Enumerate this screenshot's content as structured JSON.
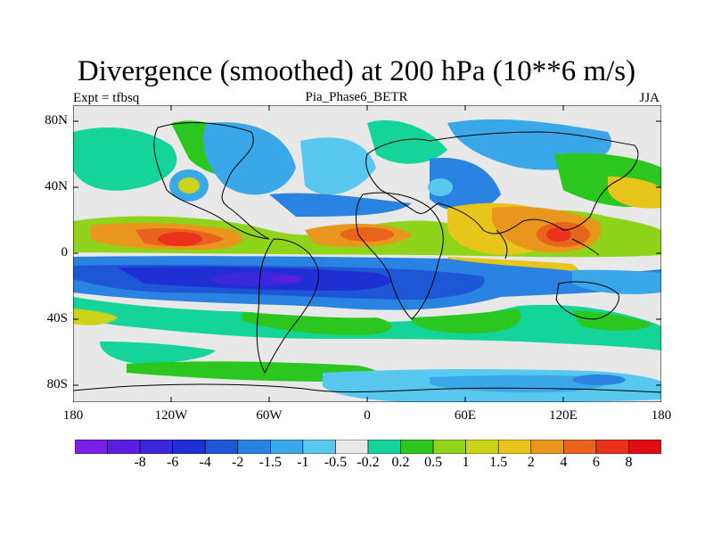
{
  "title": "Divergence (smoothed) at 200 hPa (10**6 m/s)",
  "left_label": "Expt = tfbsq",
  "center_label": "Pia_Phase6_BETR",
  "right_label": "JJA",
  "map": {
    "lat_ticks": [
      "80N",
      "40N",
      "0",
      "40S",
      "80S"
    ],
    "lon_ticks": [
      "180",
      "120W",
      "60W",
      "0",
      "60E",
      "120E",
      "180"
    ]
  },
  "colorbar": {
    "colors": [
      "#7a1fe6",
      "#5a1ee0",
      "#3a28d9",
      "#1f2fd4",
      "#1e57d6",
      "#2a83e0",
      "#3aa8e8",
      "#59c8ef",
      "#e8e8e8",
      "#14d49a",
      "#2bc71f",
      "#8fd41a",
      "#cbd418",
      "#e7c51a",
      "#e8961d",
      "#e8631c",
      "#e8321c",
      "#e00d12"
    ],
    "labels": [
      "-8",
      "-6",
      "-4",
      "-2",
      "-1.5",
      "-1",
      "-0.5",
      "-0.2",
      "0.2",
      "0.5",
      "1",
      "1.5",
      "2",
      "4",
      "6",
      "8"
    ]
  }
}
